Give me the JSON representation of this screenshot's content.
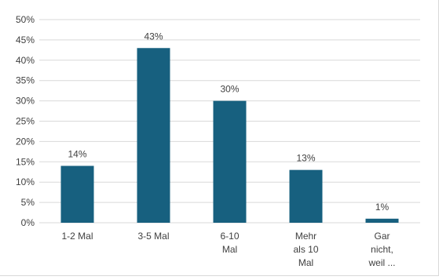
{
  "chart_data": {
    "type": "bar",
    "categories": [
      [
        "1-2 Mal"
      ],
      [
        "3-5 Mal"
      ],
      [
        "6-10",
        "Mal"
      ],
      [
        "Mehr",
        "als 10",
        "Mal"
      ],
      [
        "Gar",
        "nicht,",
        "weil ..."
      ]
    ],
    "values": [
      14,
      43,
      30,
      13,
      1
    ],
    "data_labels": [
      "14%",
      "43%",
      "30%",
      "13%",
      "1%"
    ],
    "y_ticks": [
      "0%",
      "5%",
      "10%",
      "15%",
      "20%",
      "25%",
      "30%",
      "35%",
      "40%",
      "45%",
      "50%"
    ],
    "ylim": [
      0,
      50
    ],
    "title": "",
    "xlabel": "",
    "ylabel": "",
    "grid": true,
    "legend": "none",
    "colors": {
      "bar": "#17607f",
      "grid": "#d9d9d9",
      "text": "#404040"
    }
  }
}
